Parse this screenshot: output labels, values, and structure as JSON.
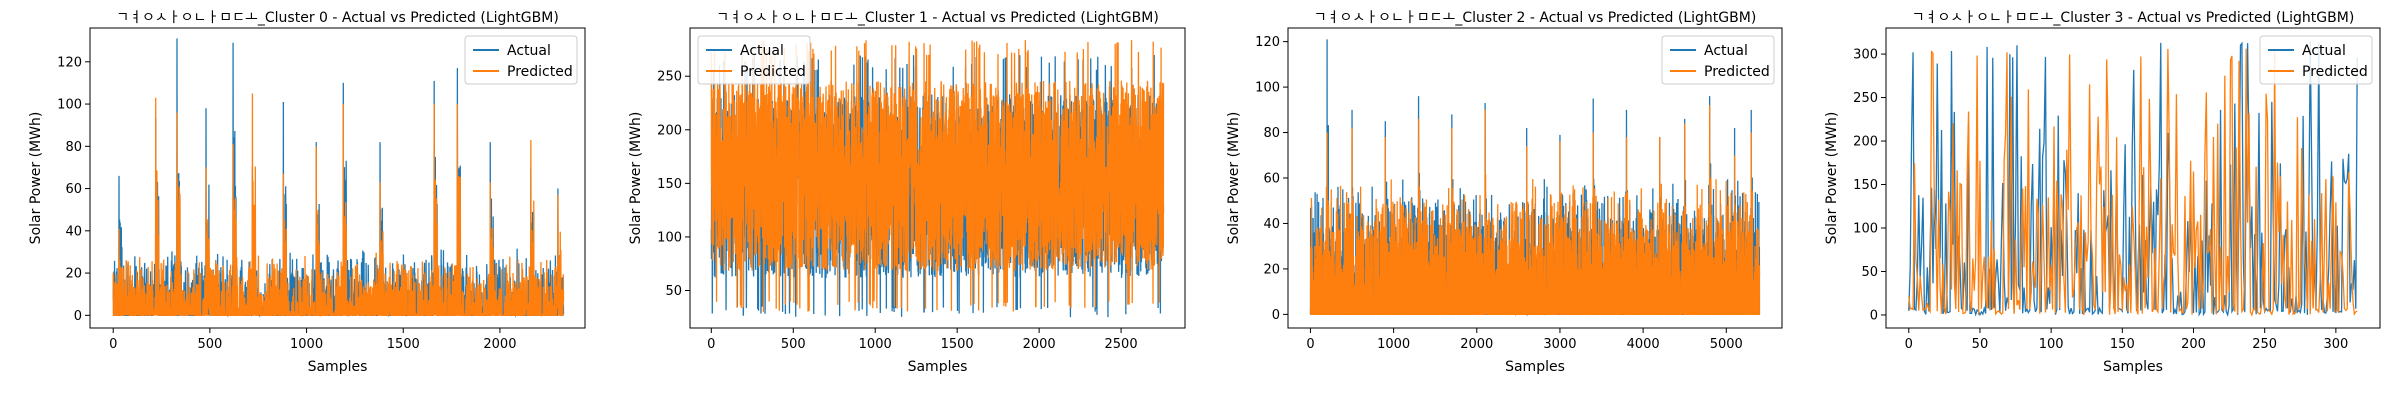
{
  "colors": {
    "actual": "#1f77b4",
    "predicted": "#ff7f0e"
  },
  "chart_data": [
    {
      "type": "line",
      "title": "ㄱㅕㅇㅅㅏㅇㄴㅏㅁㄷㅗ_Cluster 0 - Actual vs Predicted (LightGBM)",
      "xlabel": "Samples",
      "ylabel": "Solar Power (MWh)",
      "xlim": [
        -120,
        2440
      ],
      "ylim": [
        -6,
        136
      ],
      "xticks": [
        0,
        500,
        1000,
        1500,
        2000
      ],
      "yticks": [
        0,
        20,
        40,
        60,
        80,
        100,
        120
      ],
      "legend": "top-right",
      "n_samples": 2330,
      "series": [
        {
          "name": "Actual",
          "color": "#1f77b4",
          "base_max": 22,
          "spike_values": [
            66,
            93,
            131,
            98,
            129,
            70,
            101,
            82,
            110,
            82,
            111,
            117,
            82,
            70,
            60
          ]
        },
        {
          "name": "Predicted",
          "color": "#ff7f0e",
          "base_max": 20,
          "spike_values": [
            41,
            103,
            96,
            70,
            81,
            105,
            67,
            80,
            100,
            63,
            100,
            100,
            63,
            83,
            57
          ]
        }
      ],
      "spike_positions": [
        30,
        220,
        330,
        480,
        620,
        720,
        880,
        1050,
        1190,
        1380,
        1660,
        1780,
        1950,
        2160,
        2300
      ],
      "offset_min": 0
    },
    {
      "type": "line",
      "title": "ㄱㅕㅇㅅㅏㅇㄴㅏㅁㄷㅗ_Cluster 1 - Actual vs Predicted (LightGBM)",
      "xlabel": "Samples",
      "ylabel": "Solar Power (MWh)",
      "xlim": [
        -130,
        2890
      ],
      "ylim": [
        15,
        295
      ],
      "xticks": [
        0,
        500,
        1000,
        1500,
        2000,
        2500
      ],
      "yticks": [
        50,
        100,
        150,
        200,
        250
      ],
      "legend": "top-left",
      "n_samples": 2760,
      "series": [
        {
          "name": "Actual",
          "color": "#1f77b4",
          "min": 25,
          "max": 270
        },
        {
          "name": "Predicted",
          "color": "#ff7f0e",
          "min": 30,
          "max": 284
        }
      ],
      "dense": true
    },
    {
      "type": "line",
      "title": "ㄱㅕㅇㅅㅏㅇㄴㅏㅁㄷㅗ_Cluster 2 - Actual vs Predicted (LightGBM)",
      "xlabel": "Samples",
      "ylabel": "Solar Power (MWh)",
      "xlim": [
        -270,
        5670
      ],
      "ylim": [
        -6,
        126
      ],
      "xticks": [
        0,
        1000,
        2000,
        3000,
        4000,
        5000
      ],
      "yticks": [
        0,
        20,
        40,
        60,
        80,
        100,
        120
      ],
      "legend": "top-right",
      "n_samples": 5400,
      "series": [
        {
          "name": "Actual",
          "color": "#1f77b4",
          "base_max": 40,
          "spike_values": [
            121,
            90,
            85,
            96,
            88,
            93,
            82,
            79,
            95,
            90,
            78,
            86,
            96,
            82,
            90
          ]
        },
        {
          "name": "Predicted",
          "color": "#ff7f0e",
          "base_max": 40,
          "spike_values": [
            80,
            82,
            78,
            86,
            82,
            90,
            74,
            76,
            80,
            78,
            78,
            84,
            92,
            70,
            80
          ]
        }
      ],
      "spike_positions": [
        200,
        500,
        900,
        1300,
        1700,
        2100,
        2600,
        3000,
        3400,
        3800,
        4200,
        4500,
        4800,
        5100,
        5300
      ],
      "offset_min": 0
    },
    {
      "type": "line",
      "title": "ㄱㅕㅇㅅㅏㅇㄴㅏㅁㄷㅗ_Cluster 3 - Actual vs Predicted (LightGBM)",
      "xlabel": "Samples",
      "ylabel": "Solar Power (MWh)",
      "xlim": [
        -16,
        331
      ],
      "ylim": [
        -15,
        330
      ],
      "xticks": [
        0,
        50,
        100,
        150,
        200,
        250,
        300
      ],
      "yticks": [
        0,
        50,
        100,
        150,
        200,
        250,
        300
      ],
      "legend": "top-right",
      "n_samples": 316,
      "series": [
        {
          "name": "Actual",
          "color": "#1f77b4",
          "min": 0,
          "max": 315
        },
        {
          "name": "Predicted",
          "color": "#ff7f0e",
          "min": 0,
          "max": 312
        }
      ],
      "sparse": true
    }
  ]
}
